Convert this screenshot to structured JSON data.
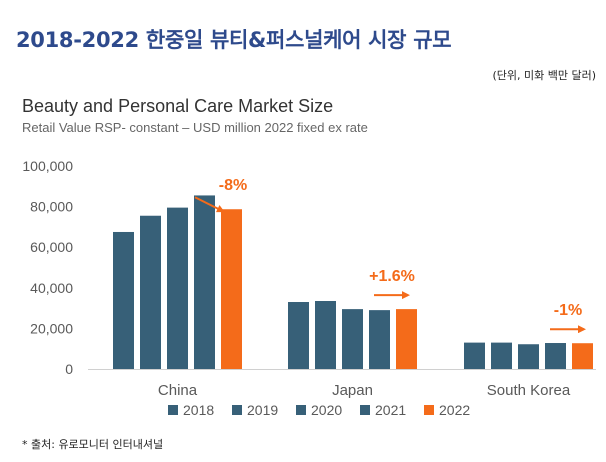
{
  "header": {
    "title": "2018-2022 한중일 뷰티&퍼스널케어 시장 규모",
    "unit_note": "(단위, 미화 백만 달러)"
  },
  "footnote": "* 출처: 유로모니터 인터내셔널",
  "colors": {
    "past_years": "#376078",
    "year_2022": "#f46b1a",
    "heading": "#2e4a8c"
  },
  "chart_data": {
    "type": "bar",
    "title": "Beauty and Personal Care Market Size",
    "subtitle": "Retail Value RSP- constant – USD million 2022 fixed ex rate",
    "categories": [
      "China",
      "Japan",
      "South Korea"
    ],
    "series": [
      {
        "name": "2018",
        "color": "#376078",
        "values": [
          67500,
          33000,
          13000
        ]
      },
      {
        "name": "2019",
        "color": "#376078",
        "values": [
          75500,
          33500,
          13000
        ]
      },
      {
        "name": "2020",
        "color": "#376078",
        "values": [
          79500,
          29500,
          12200
        ]
      },
      {
        "name": "2021",
        "color": "#376078",
        "values": [
          85500,
          29000,
          12800
        ]
      },
      {
        "name": "2022",
        "color": "#f46b1a",
        "values": [
          78700,
          29500,
          12700
        ]
      }
    ],
    "yticks": [
      "0",
      "20,000",
      "40,000",
      "60,000",
      "80,000",
      "100,000"
    ],
    "ylim": [
      0,
      100000
    ],
    "xlabel": "",
    "ylabel": "",
    "grid": false,
    "legend": "bottom",
    "annotations": [
      {
        "category": "China",
        "text": "-8%",
        "arrow": "down"
      },
      {
        "category": "Japan",
        "text": "+1.6%",
        "arrow": "right"
      },
      {
        "category": "South Korea",
        "text": "-1%",
        "arrow": "right"
      }
    ]
  }
}
